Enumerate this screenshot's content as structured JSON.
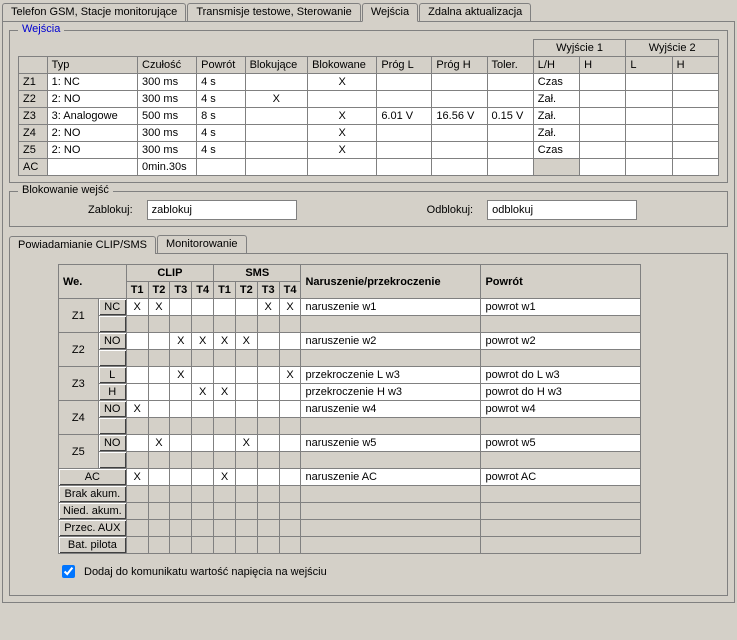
{
  "topTabs": [
    "Telefon GSM, Stacje monitorujące",
    "Transmisje testowe,  Sterowanie",
    "Wejścia",
    "Zdalna aktualizacja"
  ],
  "topTabActive": 2,
  "inputsGroup": {
    "legend": "Wejścia",
    "outHeaders": [
      "Wyjście 1",
      "Wyjście 2"
    ],
    "cols": [
      "",
      "Typ",
      "Czułość",
      "Powrót",
      "Blokujące",
      "Blokowane",
      "Próg L",
      "Próg H",
      "Toler.",
      "L/H",
      "H",
      "L",
      "H"
    ],
    "rows": [
      {
        "id": "Z1",
        "typ": "1: NC",
        "czul": "300 ms",
        "powr": "4 s",
        "blk": "",
        "blkd": "X",
        "pL": "",
        "pH": "",
        "tol": "",
        "lh": "Czas",
        "h1": "",
        "l2": "",
        "h2": ""
      },
      {
        "id": "Z2",
        "typ": "2: NO",
        "czul": "300 ms",
        "powr": "4 s",
        "blk": "X",
        "blkd": "",
        "pL": "",
        "pH": "",
        "tol": "",
        "lh": "Zał.",
        "h1": "",
        "l2": "",
        "h2": ""
      },
      {
        "id": "Z3",
        "typ": "3: Analogowe",
        "czul": "500 ms",
        "powr": "8 s",
        "blk": "",
        "blkd": "X",
        "pL": "6.01 V",
        "pH": "16.56 V",
        "tol": "0.15 V",
        "lh": "Zał.",
        "h1": "",
        "l2": "",
        "h2": ""
      },
      {
        "id": "Z4",
        "typ": "2: NO",
        "czul": "300 ms",
        "powr": "4 s",
        "blk": "",
        "blkd": "X",
        "pL": "",
        "pH": "",
        "tol": "",
        "lh": "Zał.",
        "h1": "",
        "l2": "",
        "h2": ""
      },
      {
        "id": "Z5",
        "typ": "2: NO",
        "czul": "300 ms",
        "powr": "4 s",
        "blk": "",
        "blkd": "X",
        "pL": "",
        "pH": "",
        "tol": "",
        "lh": "Czas",
        "h1": "",
        "l2": "",
        "h2": ""
      },
      {
        "id": "AC",
        "typ": "",
        "czul": "0min.30s",
        "powr": "",
        "blk": "",
        "blkd": "",
        "pL": "",
        "pH": "",
        "tol": "",
        "lh": "",
        "h1": "",
        "l2": "",
        "h2": "",
        "lhSel": true
      }
    ]
  },
  "block": {
    "legend": "Blokowanie wejść",
    "lockLabel": "Zablokuj:",
    "lockVal": "zablokuj",
    "unlockLabel": "Odblokuj:",
    "unlockVal": "odblokuj"
  },
  "subTabs": [
    "Powiadamianie CLIP/SMS",
    "Monitorowanie"
  ],
  "subActive": 0,
  "cs": {
    "grpHdr": [
      "CLIP",
      "SMS"
    ],
    "Tcols": [
      "T1",
      "T2",
      "T3",
      "T4",
      "T1",
      "T2",
      "T3",
      "T4"
    ],
    "cols2": [
      "Naruszenie/przekroczenie",
      "Powrót"
    ],
    "weLabel": "We.",
    "rows": [
      {
        "z": "Z1",
        "sub": "NC",
        "t": [
          "X",
          "X",
          "",
          "",
          "",
          "",
          "X",
          "X"
        ],
        "n": "naruszenie w1",
        "p": "powrot w1",
        "blankRow": true
      },
      {
        "z": "Z2",
        "sub": "NO",
        "t": [
          "",
          "",
          "X",
          "X",
          "X",
          "X",
          "",
          ""
        ],
        "n": "naruszenie w2",
        "p": "powrot w2",
        "blankRow": true
      },
      {
        "z": "Z3",
        "sub": "L",
        "t": [
          "",
          "",
          "X",
          "",
          "",
          "",
          "",
          "X"
        ],
        "n": "przekroczenie L w3",
        "p": "powrot do L w3"
      },
      {
        "z": "Z3b",
        "sub": "H",
        "t": [
          "",
          "",
          "",
          "X",
          "X",
          "",
          "",
          ""
        ],
        "n": "przekroczenie H w3",
        "p": "powrot do H w3",
        "noZ": true
      },
      {
        "z": "Z4",
        "sub": "NO",
        "t": [
          "X",
          "",
          "",
          "",
          "",
          "",
          "",
          ""
        ],
        "n": "naruszenie w4",
        "p": "powrot w4",
        "blankRow": true
      },
      {
        "z": "Z5",
        "sub": "NO",
        "t": [
          "",
          "X",
          "",
          "",
          "",
          "X",
          "",
          ""
        ],
        "n": "naruszenie w5",
        "p": "powrot w5",
        "blankRow": true
      },
      {
        "z": "AC",
        "sub": "",
        "noSub": true,
        "t": [
          "X",
          "",
          "",
          "",
          "X",
          "",
          "",
          ""
        ],
        "n": "naruszenie AC",
        "p": "powrot AC"
      }
    ],
    "extraBtns": [
      "Brak akum.",
      "Nied. akum.",
      "Przec. AUX",
      "Bat. pilota"
    ]
  },
  "voltageChk": {
    "checked": true,
    "label": "Dodaj do komunikatu wartość napięcia na wejściu"
  }
}
